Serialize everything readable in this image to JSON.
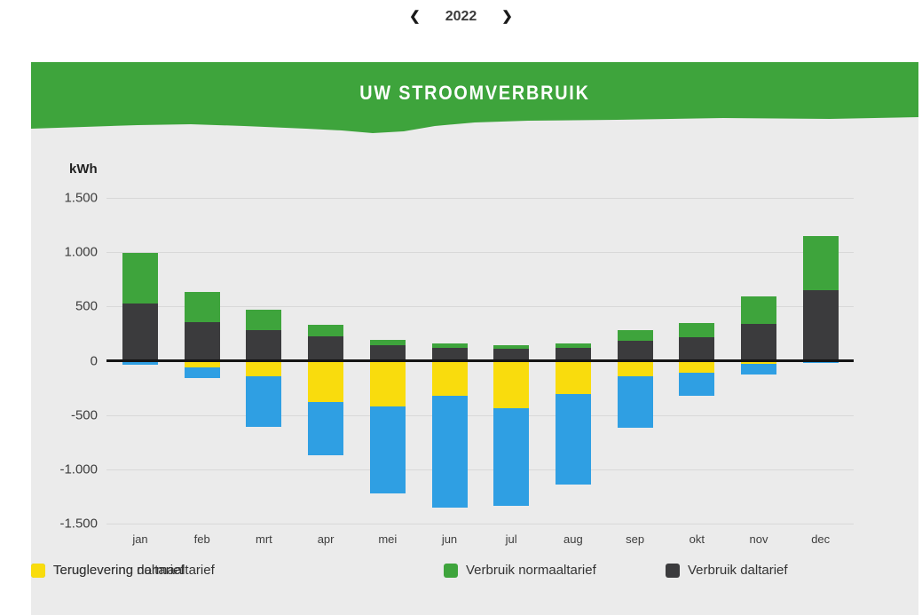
{
  "year_nav": {
    "prev_glyph": "❮",
    "year": "2022",
    "next_glyph": "❯"
  },
  "header": {
    "title": "UW STROOMVERBRUIK"
  },
  "axis": {
    "unit": "kWh"
  },
  "colors": {
    "banner_green": "#3EA43C",
    "panel_background": "#EBEBEB",
    "gridline": "#D8D8D8",
    "zero_line": "#141414",
    "verbruik_normaaltarief": "#3EA43C",
    "verbruik_daltarief": "#3B3B3D",
    "teruglevering_normaaltarief": "#2F9FE3",
    "teruglevering_daltarief": "#F9DC0D"
  },
  "chart_data": {
    "type": "bar",
    "variant": "stacked-bar-with-negative",
    "title": "UW STROOMVERBRUIK",
    "ylabel": "kWh",
    "x": [
      "jan",
      "feb",
      "mrt",
      "apr",
      "mei",
      "jun",
      "jul",
      "aug",
      "sep",
      "okt",
      "nov",
      "dec"
    ],
    "y_ticks": [
      "1.500",
      "1.000",
      "500",
      "0",
      "-500",
      "-1.000",
      "-1.500"
    ],
    "y_tick_values": [
      1500,
      1000,
      500,
      0,
      -500,
      -1000,
      -1500
    ],
    "ylim": [
      -1500,
      1500
    ],
    "grid": true,
    "legend_position": "bottom",
    "series": [
      {
        "name": "Verbruik normaaltarief",
        "color": "#3EA43C",
        "values": [
          460,
          280,
          180,
          105,
          45,
          40,
          35,
          40,
          100,
          125,
          260,
          500
        ]
      },
      {
        "name": "Verbruik daltarief",
        "color": "#3B3B3D",
        "values": [
          530,
          355,
          285,
          225,
          145,
          120,
          110,
          115,
          180,
          220,
          335,
          645
        ]
      },
      {
        "name": "Teruglevering normaaltarief",
        "color": "#2F9FE3",
        "values": [
          -35,
          -95,
          -460,
          -490,
          -800,
          -1030,
          -900,
          -835,
          -470,
          -215,
          -95,
          -20
        ]
      },
      {
        "name": "Teruglevering daltarief",
        "color": "#F9DC0D",
        "values": [
          0,
          -65,
          -145,
          -380,
          -420,
          -320,
          -435,
          -305,
          -145,
          -110,
          -30,
          0
        ]
      }
    ]
  }
}
